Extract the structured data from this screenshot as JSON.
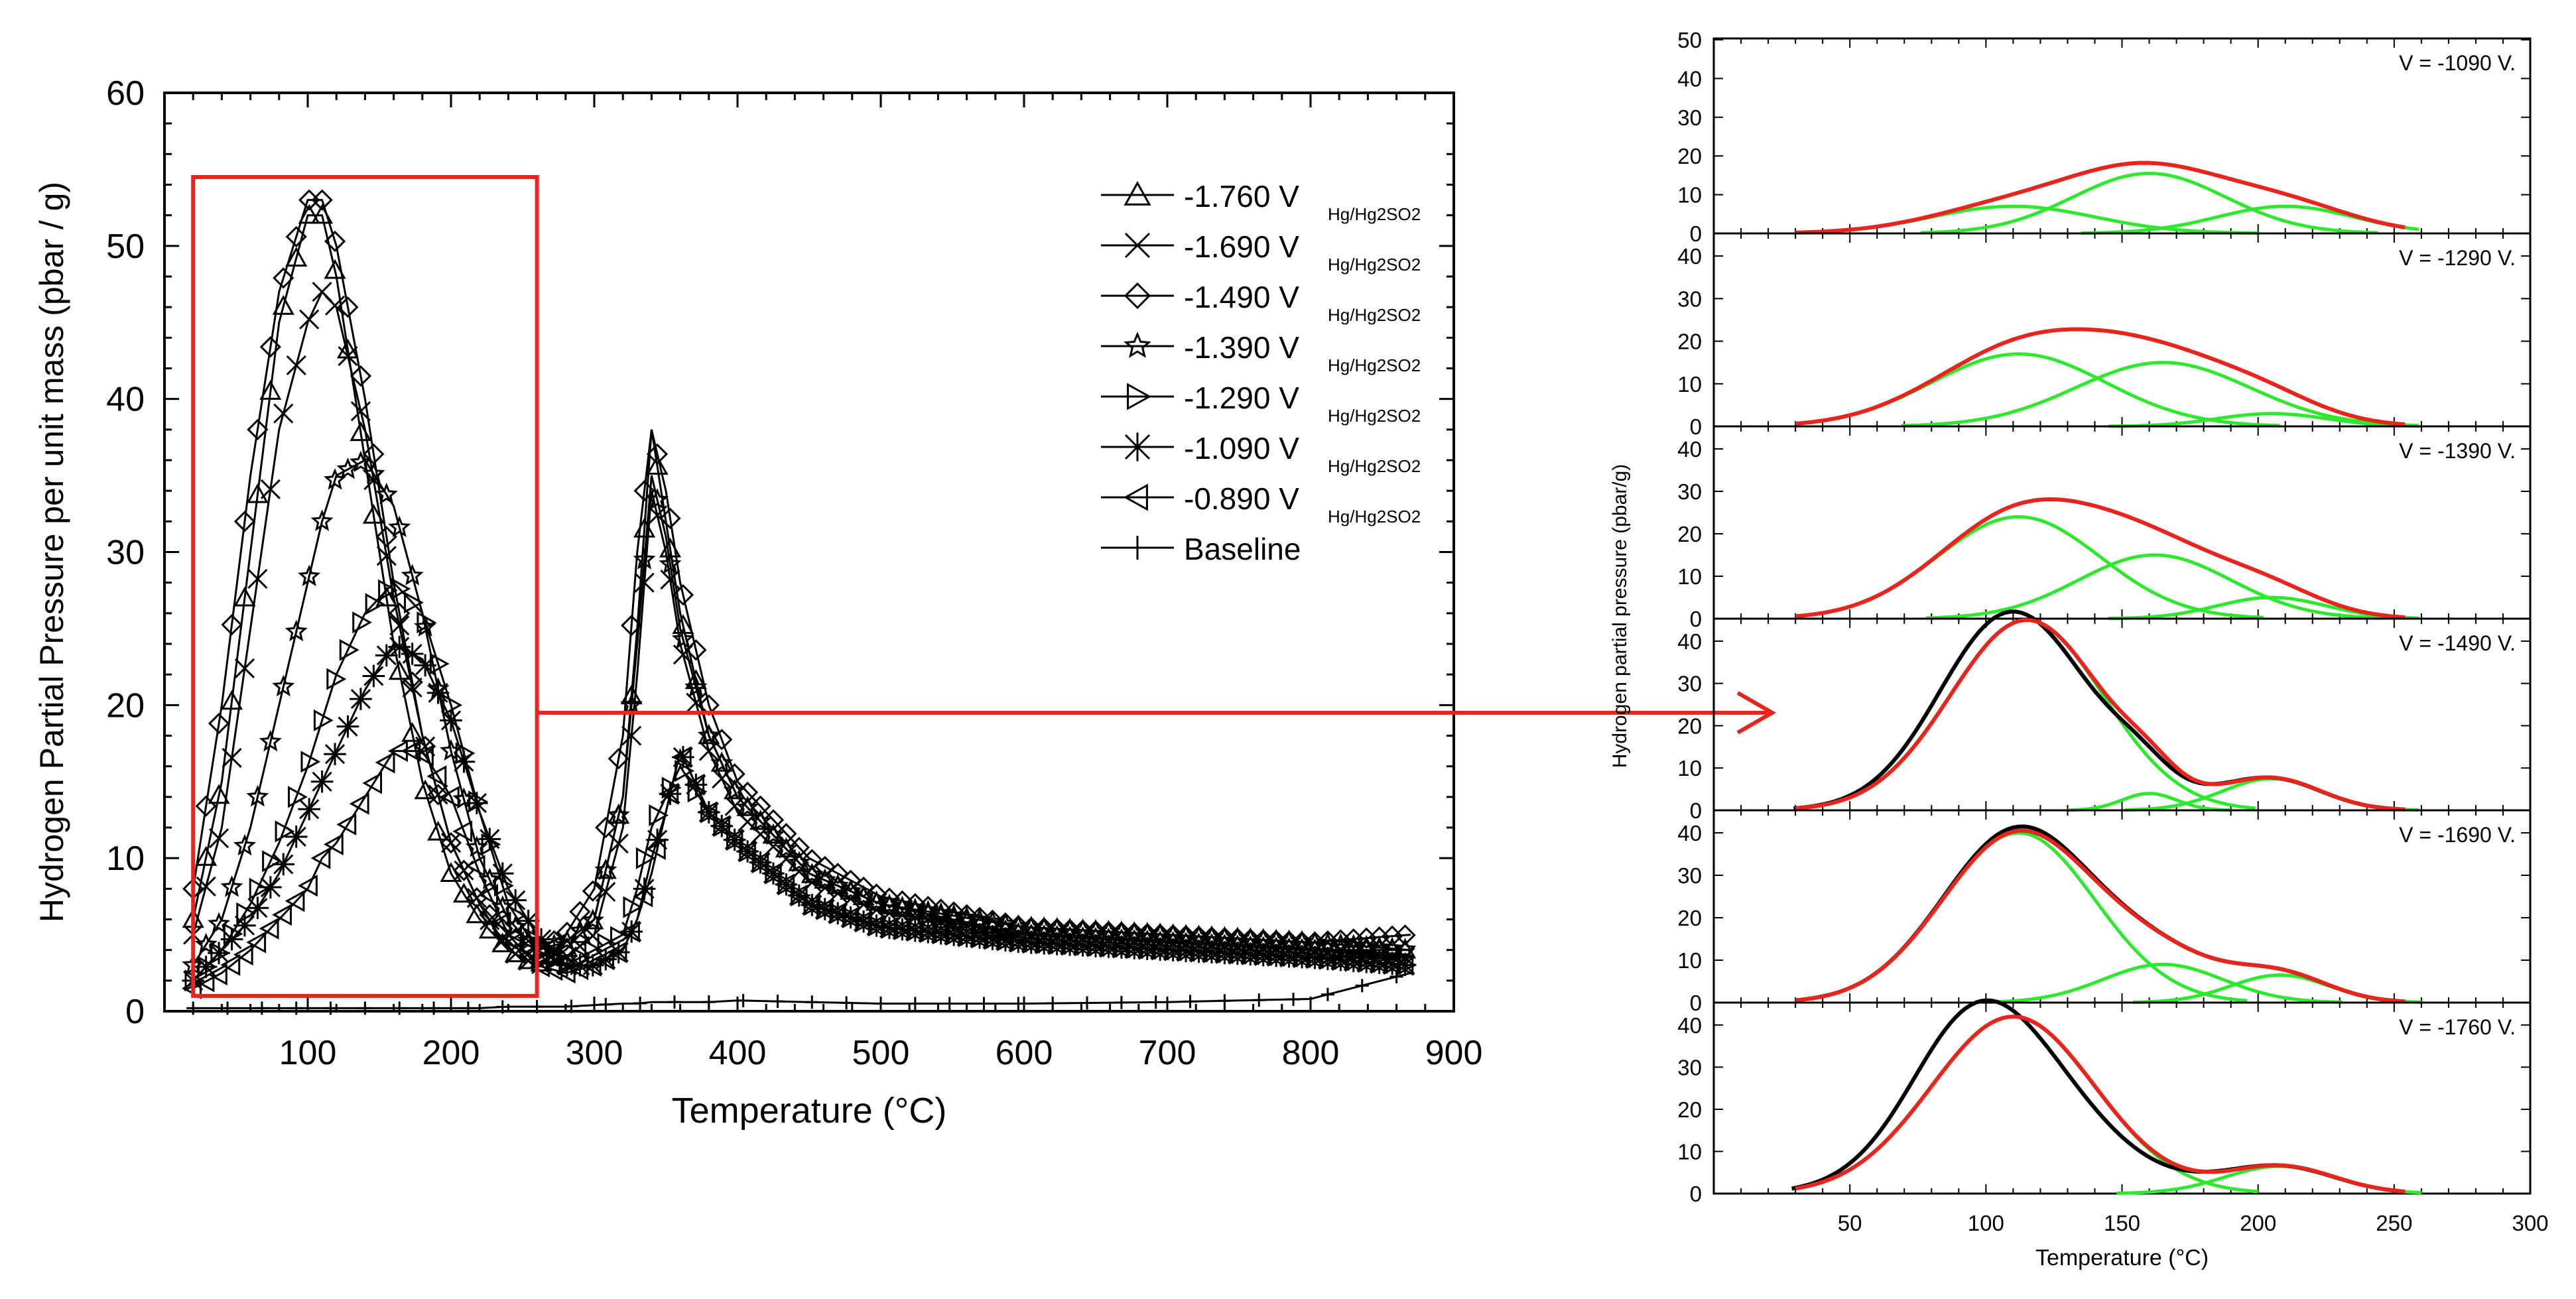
{
  "chart_data": [
    {
      "type": "line",
      "xlabel": "Temperature (°C)",
      "ylabel": "Hydrogen Partial Pressure per unit mass  (pbar / g)",
      "xlim": [
        0,
        900
      ],
      "ylim": [
        0,
        60
      ],
      "xticks": [
        100,
        200,
        300,
        400,
        500,
        600,
        700,
        800,
        900
      ],
      "yticks": [
        0,
        10,
        20,
        30,
        40,
        50,
        60
      ],
      "grid": false,
      "legend_position": "top-right",
      "x": [
        20,
        40,
        60,
        80,
        100,
        110,
        120,
        140,
        160,
        180,
        200,
        220,
        240,
        260,
        280,
        300,
        320,
        330,
        340,
        350,
        360,
        380,
        400,
        450,
        500,
        600,
        700,
        800,
        870
      ],
      "series": [
        {
          "name": "-1.760 V",
          "sub": "Hg/Hg2SO2",
          "marker": "triangle-up",
          "values": [
            6,
            15,
            30,
            45,
            52,
            52,
            48,
            36,
            24,
            15,
            9,
            6,
            4,
            3,
            4,
            6,
            14,
            25,
            38,
            32,
            26,
            18,
            14,
            9,
            7,
            5,
            4.5,
            4,
            4
          ]
        },
        {
          "name": "-1.690 V",
          "sub": "Hg/Hg2SO2",
          "marker": "x",
          "values": [
            5,
            12,
            25,
            38,
            45,
            47,
            46,
            38,
            27,
            18,
            11,
            7,
            4,
            3,
            3.5,
            5,
            12,
            22,
            34,
            30,
            24,
            17,
            13,
            8.5,
            6.5,
            5,
            4.5,
            4,
            3.5
          ]
        },
        {
          "name": "-1.490 V",
          "sub": "Hg/Hg2SO2",
          "marker": "diamond",
          "values": [
            8,
            20,
            35,
            47,
            53,
            53,
            50,
            40,
            28,
            18,
            11,
            7,
            5,
            4,
            5,
            8,
            18,
            30,
            38,
            34,
            28,
            20,
            15,
            10,
            7.5,
            5.5,
            5,
            4.5,
            5
          ]
        },
        {
          "name": "-1.390 V",
          "sub": "Hg/Hg2SO2",
          "marker": "star",
          "values": [
            3,
            6,
            12,
            20,
            28,
            32,
            35,
            36,
            33,
            26,
            17,
            10,
            6,
            4,
            4.5,
            6,
            14,
            24,
            35,
            31,
            25,
            18,
            14,
            9,
            7,
            5.5,
            5,
            4.5,
            4
          ]
        },
        {
          "name": "-1.290 V",
          "sub": "Hg/Hg2SO2",
          "marker": "triangle-right",
          "values": [
            2,
            4,
            7,
            11,
            16,
            19,
            22,
            26,
            28,
            26,
            20,
            13,
            7,
            4,
            3,
            4,
            5,
            8,
            12,
            14,
            16,
            13,
            11,
            7,
            5.5,
            4.5,
            4,
            3.5,
            3
          ]
        },
        {
          "name": "-1.090 V",
          "sub": "Hg/Hg2SO2",
          "marker": "asterisk",
          "values": [
            2,
            4,
            6,
            9,
            13,
            15,
            17,
            21,
            24,
            23,
            19,
            13,
            8,
            5,
            3,
            3,
            4,
            6,
            10,
            13,
            17,
            13,
            11,
            7,
            5.5,
            4.5,
            4,
            3.5,
            3
          ]
        },
        {
          "name": "-0.890 V",
          "sub": "Hg/Hg2SO2",
          "marker": "triangle-left",
          "values": [
            1.5,
            2.5,
            4,
            6,
            8,
            10,
            11,
            14,
            17,
            17,
            14,
            9,
            5,
            3,
            2.5,
            3,
            4,
            6,
            9,
            13,
            17,
            13,
            11,
            7,
            5.5,
            4.5,
            4,
            3.5,
            3
          ]
        },
        {
          "name": "Baseline",
          "sub": "",
          "marker": "plus",
          "values": [
            0.2,
            0.2,
            0.2,
            0.2,
            0.2,
            0.2,
            0.2,
            0.2,
            0.2,
            0.2,
            0.2,
            0.2,
            0.3,
            0.3,
            0.3,
            0.4,
            0.5,
            0.5,
            0.6,
            0.6,
            0.6,
            0.6,
            0.7,
            0.6,
            0.5,
            0.5,
            0.6,
            0.8,
            2.5
          ]
        }
      ],
      "annotations": [
        "highlight box: 20–260 °C",
        "arrow to deconvolution panels"
      ]
    },
    {
      "type": "line",
      "xlabel": "Temperature (°C)",
      "ylabel": "Hydrogen partial pressure (pbar/g)",
      "xlim": [
        0,
        300
      ],
      "xticks": [
        50,
        100,
        150,
        200,
        250,
        300
      ],
      "colors": {
        "measured": "#000000",
        "fit": "#e8251d",
        "components": "#2ee82e"
      },
      "panels": [
        {
          "label": "V = -1090 V.",
          "ylim": [
            0,
            50
          ],
          "yticks": [
            0,
            10,
            20,
            30,
            40,
            50
          ],
          "fit_peak": {
            "x": 160,
            "y": 19
          },
          "components": [
            {
              "center": 110,
              "height": 7,
              "width": 30
            },
            {
              "center": 160,
              "height": 15.5,
              "width": 28
            },
            {
              "center": 210,
              "height": 7,
              "width": 25
            }
          ]
        },
        {
          "label": "V = -1290 V.",
          "ylim": [
            0,
            45
          ],
          "yticks": [
            0,
            10,
            20,
            30,
            40
          ],
          "fit_peak": {
            "x": 130,
            "y": 25
          },
          "components": [
            {
              "center": 112,
              "height": 17,
              "width": 32
            },
            {
              "center": 165,
              "height": 15,
              "width": 32
            },
            {
              "center": 205,
              "height": 3,
              "width": 20
            }
          ]
        },
        {
          "label": "V = -1390 V.",
          "ylim": [
            0,
            45
          ],
          "yticks": [
            0,
            10,
            20,
            30,
            40
          ],
          "fit_peak": {
            "x": 130,
            "y": 30.5
          },
          "components": [
            {
              "center": 112,
              "height": 24,
              "width": 30
            },
            {
              "center": 162,
              "height": 15,
              "width": 28
            },
            {
              "center": 205,
              "height": 5,
              "width": 20
            }
          ]
        },
        {
          "label": "V = -1490 V.",
          "ylim": [
            0,
            45
          ],
          "yticks": [
            0,
            10,
            20,
            30,
            40
          ],
          "measured_peak": {
            "x": 110,
            "y": 47
          },
          "fit_peak": {
            "x": 115,
            "y": 45
          },
          "components": [
            {
              "center": 115,
              "height": 45,
              "width": 28
            },
            {
              "center": 160,
              "height": 4,
              "width": 10
            },
            {
              "center": 205,
              "height": 7.5,
              "width": 18
            }
          ]
        },
        {
          "label": "V = -1690 V.",
          "ylim": [
            0,
            45
          ],
          "yticks": [
            0,
            10,
            20,
            30,
            40
          ],
          "measured_peak": {
            "x": 115,
            "y": 42
          },
          "fit_peak": {
            "x": 115,
            "y": 41
          },
          "components": [
            {
              "center": 112,
              "height": 40,
              "width": 28
            },
            {
              "center": 165,
              "height": 9,
              "width": 22
            },
            {
              "center": 208,
              "height": 6.5,
              "width": 18
            }
          ]
        },
        {
          "label": "V = -1760 V.",
          "ylim": [
            0,
            45
          ],
          "yticks": [
            0,
            10,
            20,
            30,
            40
          ],
          "measured_peak": {
            "x": 105,
            "y": 47
          },
          "fit_peak": {
            "x": 115,
            "y": 43
          },
          "components": [
            {
              "center": 110,
              "height": 42,
              "width": 30
            },
            {
              "center": 208,
              "height": 6.5,
              "width": 20
            }
          ]
        }
      ]
    }
  ]
}
